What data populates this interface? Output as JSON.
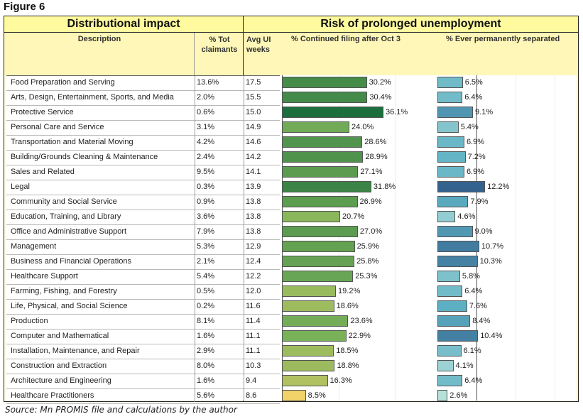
{
  "figure_label": "Figure 6",
  "source_note": "Source: Mn PROMIS file and calculations by the author",
  "headers": {
    "group_left": "Distributional impact",
    "group_right": "Risk of prolonged unemployment",
    "description": "Description",
    "pct_tot_claimants": "% Tot claimants",
    "avg_ui_weeks": "Avg UI weeks",
    "continued_filing": "% Continued filing after Oct 3",
    "perm_separated": "% Ever permanently separated"
  },
  "chart_data": {
    "type": "table",
    "title": "Figure 6",
    "columns": [
      "Description",
      "% Tot claimants",
      "Avg UI weeks",
      "% Continued filing after Oct 3",
      "% Ever permanently separated"
    ],
    "rows": [
      {
        "description": "Food Preparation and Serving",
        "pct_tot": "13.6%",
        "avg_weeks": "17.5",
        "cont_filing": 30.2,
        "perm_sep": 6.5
      },
      {
        "description": "Arts, Design, Entertainment, Sports, and Media",
        "pct_tot": "2.0%",
        "avg_weeks": "15.5",
        "cont_filing": 30.4,
        "perm_sep": 6.4
      },
      {
        "description": "Protective Service",
        "pct_tot": "0.6%",
        "avg_weeks": "15.0",
        "cont_filing": 36.1,
        "perm_sep": 9.1
      },
      {
        "description": "Personal Care and Service",
        "pct_tot": "3.1%",
        "avg_weeks": "14.9",
        "cont_filing": 24.0,
        "perm_sep": 5.4
      },
      {
        "description": "Transportation and Material Moving",
        "pct_tot": "4.2%",
        "avg_weeks": "14.6",
        "cont_filing": 28.6,
        "perm_sep": 6.9
      },
      {
        "description": "Building/Grounds Cleaning & Maintenance",
        "pct_tot": "2.4%",
        "avg_weeks": "14.2",
        "cont_filing": 28.9,
        "perm_sep": 7.2
      },
      {
        "description": "Sales and Related",
        "pct_tot": "9.5%",
        "avg_weeks": "14.1",
        "cont_filing": 27.1,
        "perm_sep": 6.9
      },
      {
        "description": "Legal",
        "pct_tot": "0.3%",
        "avg_weeks": "13.9",
        "cont_filing": 31.8,
        "perm_sep": 12.2
      },
      {
        "description": "Community and Social Service",
        "pct_tot": "0.9%",
        "avg_weeks": "13.8",
        "cont_filing": 26.9,
        "perm_sep": 7.9
      },
      {
        "description": "Education, Training, and Library",
        "pct_tot": "3.6%",
        "avg_weeks": "13.8",
        "cont_filing": 20.7,
        "perm_sep": 4.6
      },
      {
        "description": "Office and Administrative Support",
        "pct_tot": "7.9%",
        "avg_weeks": "13.8",
        "cont_filing": 27.0,
        "perm_sep": 9.0
      },
      {
        "description": "Management",
        "pct_tot": "5.3%",
        "avg_weeks": "12.9",
        "cont_filing": 25.9,
        "perm_sep": 10.7
      },
      {
        "description": "Business and Financial Operations",
        "pct_tot": "2.1%",
        "avg_weeks": "12.4",
        "cont_filing": 25.8,
        "perm_sep": 10.3
      },
      {
        "description": "Healthcare Support",
        "pct_tot": "5.4%",
        "avg_weeks": "12.2",
        "cont_filing": 25.3,
        "perm_sep": 5.8
      },
      {
        "description": "Farming, Fishing, and Forestry",
        "pct_tot": "0.5%",
        "avg_weeks": "12.0",
        "cont_filing": 19.2,
        "perm_sep": 6.4
      },
      {
        "description": "Life, Physical, and Social Science",
        "pct_tot": "0.2%",
        "avg_weeks": "11.6",
        "cont_filing": 18.6,
        "perm_sep": 7.6
      },
      {
        "description": "Production",
        "pct_tot": "8.1%",
        "avg_weeks": "11.4",
        "cont_filing": 23.6,
        "perm_sep": 8.4
      },
      {
        "description": "Computer and Mathematical",
        "pct_tot": "1.6%",
        "avg_weeks": "11.1",
        "cont_filing": 22.9,
        "perm_sep": 10.4
      },
      {
        "description": "Installation, Maintenance, and Repair",
        "pct_tot": "2.9%",
        "avg_weeks": "11.1",
        "cont_filing": 18.5,
        "perm_sep": 6.1
      },
      {
        "description": "Construction and Extraction",
        "pct_tot": "8.0%",
        "avg_weeks": "10.3",
        "cont_filing": 18.8,
        "perm_sep": 4.1
      },
      {
        "description": "Architecture and Engineering",
        "pct_tot": "1.6%",
        "avg_weeks": "9.4",
        "cont_filing": 16.3,
        "perm_sep": 6.4
      },
      {
        "description": "Healthcare Practitioners",
        "pct_tot": "5.6%",
        "avg_weeks": "8.6",
        "cont_filing": 8.5,
        "perm_sep": 2.6
      }
    ],
    "series": [
      {
        "name": "% Continued filing after Oct 3",
        "key": "cont_filing",
        "color_low": "#f5d46a",
        "color_mid": "#7cb35a",
        "color_high": "#16693a",
        "range": [
          8,
          37
        ]
      },
      {
        "name": "% Ever permanently separated",
        "key": "perm_sep",
        "color_low": "#c2e6dc",
        "color_mid": "#5eb1c4",
        "color_high": "#2d5586",
        "range": [
          2,
          13
        ]
      }
    ],
    "grid": true,
    "legend": "none"
  }
}
